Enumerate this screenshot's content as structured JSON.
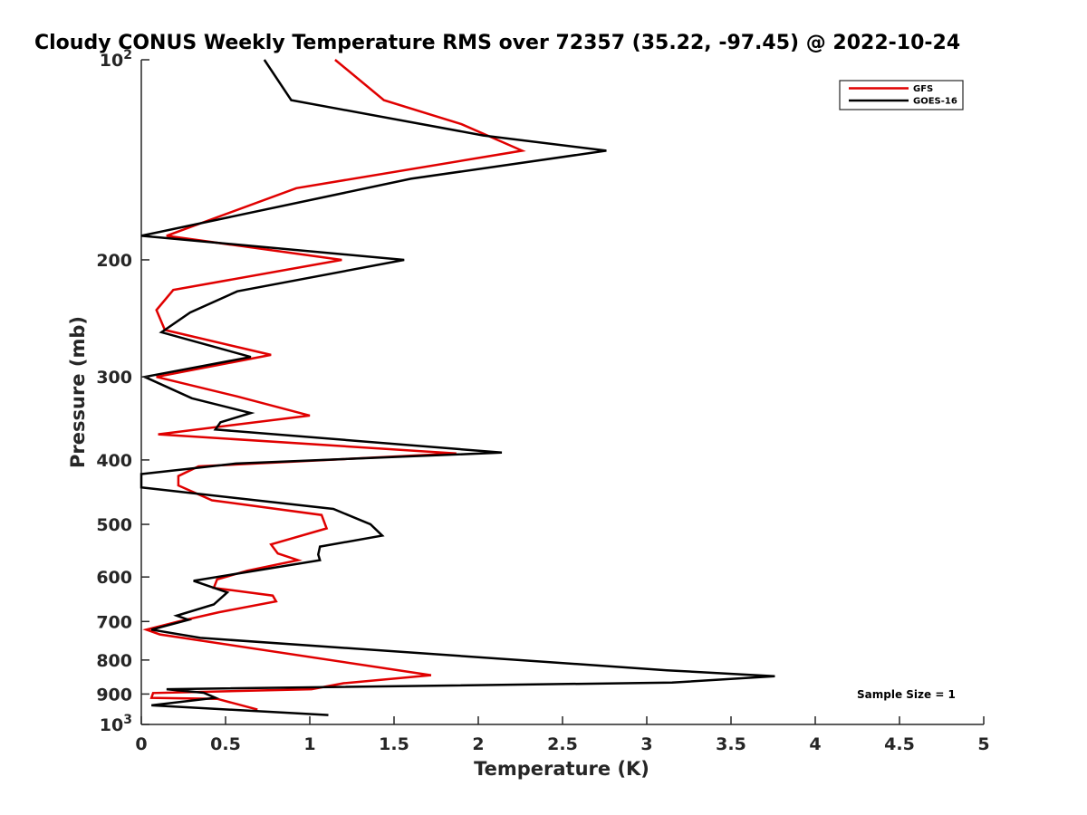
{
  "chart_data": {
    "type": "line",
    "title": "Cloudy CONUS Weekly Temperature RMS over 72357 (35.22, -97.45) @ 2022-10-24",
    "xlabel": "Temperature (K)",
    "ylabel": "Pressure (mb)",
    "xlim": [
      0,
      5
    ],
    "ylim": [
      100,
      1000
    ],
    "y_scale": "log",
    "y_reversed": true,
    "grid": false,
    "legend_position": "top-right",
    "x_ticks": [
      "0",
      "0.5",
      "1",
      "1.5",
      "2",
      "2.5",
      "3",
      "3.5",
      "4",
      "4.5",
      "5"
    ],
    "y_ticks": [
      {
        "value": 100,
        "base": "10",
        "exp": "2"
      },
      {
        "value": 200,
        "label": "200"
      },
      {
        "value": 300,
        "label": "300"
      },
      {
        "value": 400,
        "label": "400"
      },
      {
        "value": 500,
        "label": "500"
      },
      {
        "value": 600,
        "label": "600"
      },
      {
        "value": 700,
        "label": "700"
      },
      {
        "value": 800,
        "label": "800"
      },
      {
        "value": 900,
        "label": "900"
      },
      {
        "value": 1000,
        "base": "10",
        "exp": "3"
      }
    ],
    "annotation": "Sample Size = 1",
    "series": [
      {
        "name": "GFS",
        "color": "#e00000",
        "points": [
          {
            "x": 1.15,
            "p": 100
          },
          {
            "x": 1.44,
            "p": 115
          },
          {
            "x": 1.9,
            "p": 125
          },
          {
            "x": 2.26,
            "p": 137
          },
          {
            "x": 0.92,
            "p": 156
          },
          {
            "x": 0.15,
            "p": 184
          },
          {
            "x": 1.19,
            "p": 200
          },
          {
            "x": 0.19,
            "p": 222
          },
          {
            "x": 0.09,
            "p": 238
          },
          {
            "x": 0.14,
            "p": 255
          },
          {
            "x": 0.77,
            "p": 278
          },
          {
            "x": 0.09,
            "p": 300
          },
          {
            "x": 0.57,
            "p": 321
          },
          {
            "x": 1.0,
            "p": 343
          },
          {
            "x": 0.1,
            "p": 366
          },
          {
            "x": 1.87,
            "p": 391
          },
          {
            "x": 0.34,
            "p": 409
          },
          {
            "x": 0.22,
            "p": 423
          },
          {
            "x": 0.22,
            "p": 437
          },
          {
            "x": 0.42,
            "p": 460
          },
          {
            "x": 1.07,
            "p": 484
          },
          {
            "x": 1.1,
            "p": 507
          },
          {
            "x": 0.77,
            "p": 536
          },
          {
            "x": 0.81,
            "p": 553
          },
          {
            "x": 0.93,
            "p": 566
          },
          {
            "x": 0.63,
            "p": 587
          },
          {
            "x": 0.45,
            "p": 605
          },
          {
            "x": 0.43,
            "p": 623
          },
          {
            "x": 0.78,
            "p": 640
          },
          {
            "x": 0.8,
            "p": 653
          },
          {
            "x": 0.46,
            "p": 678
          },
          {
            "x": 0.22,
            "p": 700
          },
          {
            "x": 0.03,
            "p": 720
          },
          {
            "x": 0.11,
            "p": 732
          },
          {
            "x": 1.72,
            "p": 843
          },
          {
            "x": 1.2,
            "p": 867
          },
          {
            "x": 1.01,
            "p": 885
          },
          {
            "x": 0.07,
            "p": 897
          },
          {
            "x": 0.06,
            "p": 912
          },
          {
            "x": 0.45,
            "p": 915
          },
          {
            "x": 0.69,
            "p": 950
          }
        ]
      },
      {
        "name": "GOES-16",
        "color": "#000000",
        "points": [
          {
            "x": 0.73,
            "p": 100
          },
          {
            "x": 0.89,
            "p": 115
          },
          {
            "x": 2.03,
            "p": 130
          },
          {
            "x": 2.76,
            "p": 137
          },
          {
            "x": 1.6,
            "p": 151
          },
          {
            "x": 0.0,
            "p": 184
          },
          {
            "x": 1.56,
            "p": 200
          },
          {
            "x": 0.57,
            "p": 223
          },
          {
            "x": 0.29,
            "p": 240
          },
          {
            "x": 0.12,
            "p": 257
          },
          {
            "x": 0.65,
            "p": 280
          },
          {
            "x": 0.02,
            "p": 300
          },
          {
            "x": 0.3,
            "p": 323
          },
          {
            "x": 0.65,
            "p": 340
          },
          {
            "x": 0.47,
            "p": 351
          },
          {
            "x": 0.44,
            "p": 360
          },
          {
            "x": 2.14,
            "p": 390
          },
          {
            "x": 0.56,
            "p": 405
          },
          {
            "x": 0.0,
            "p": 420
          },
          {
            "x": 0.0,
            "p": 440
          },
          {
            "x": 1.14,
            "p": 474
          },
          {
            "x": 1.36,
            "p": 500
          },
          {
            "x": 1.43,
            "p": 520
          },
          {
            "x": 1.06,
            "p": 540
          },
          {
            "x": 1.05,
            "p": 555
          },
          {
            "x": 1.06,
            "p": 566
          },
          {
            "x": 0.31,
            "p": 608
          },
          {
            "x": 0.51,
            "p": 633
          },
          {
            "x": 0.43,
            "p": 660
          },
          {
            "x": 0.21,
            "p": 686
          },
          {
            "x": 0.28,
            "p": 696
          },
          {
            "x": 0.06,
            "p": 720
          },
          {
            "x": 0.35,
            "p": 741
          },
          {
            "x": 3.12,
            "p": 829
          },
          {
            "x": 3.76,
            "p": 846
          },
          {
            "x": 3.15,
            "p": 865
          },
          {
            "x": 0.15,
            "p": 885
          },
          {
            "x": 0.37,
            "p": 896
          },
          {
            "x": 0.44,
            "p": 912
          },
          {
            "x": 0.06,
            "p": 936
          },
          {
            "x": 1.11,
            "p": 968
          }
        ]
      }
    ]
  }
}
